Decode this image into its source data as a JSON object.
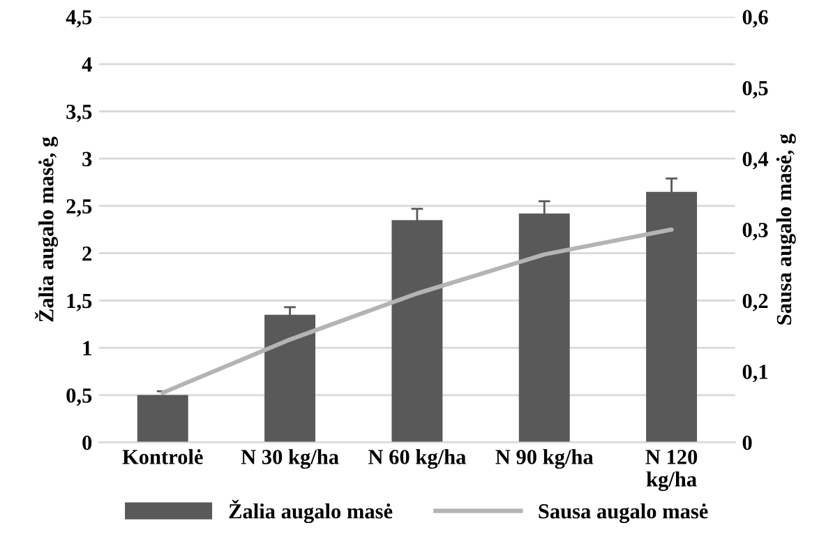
{
  "chart_data": {
    "type": "bar",
    "categories": [
      "Kontrolė",
      "N 30 kg/ha",
      "N 60 kg/ha",
      "N 90 kg/ha",
      "N 120\nkg/ha"
    ],
    "ylabel": "Žalia augalo masė, g",
    "y2label": "Sausa augalo masė, g",
    "series": [
      {
        "name": "Žalia augalo masė",
        "color": "#595959",
        "values": [
          0.5,
          1.35,
          2.35,
          2.42,
          2.65
        ],
        "errors": [
          0.04,
          0.08,
          0.12,
          0.13,
          0.14
        ]
      },
      {
        "name": "Sausa augalo masė",
        "type": "line",
        "axis": "y2",
        "color": "#b4b4b4",
        "values": [
          0.07,
          0.145,
          0.21,
          0.265,
          0.3
        ]
      }
    ],
    "ylim": [
      0,
      4.5
    ],
    "yticks": [
      {
        "value": 0,
        "label": "0"
      },
      {
        "value": 0.5,
        "label": "0,5"
      },
      {
        "value": 1,
        "label": "1"
      },
      {
        "value": 1.5,
        "label": "1,5"
      },
      {
        "value": 2,
        "label": "2"
      },
      {
        "value": 2.5,
        "label": "2,5"
      },
      {
        "value": 3,
        "label": "3"
      },
      {
        "value": 3.5,
        "label": "3,5"
      },
      {
        "value": 4,
        "label": "4"
      },
      {
        "value": 4.5,
        "label": "4,5"
      }
    ],
    "y2lim": [
      0,
      0.6
    ],
    "y2ticks": [
      {
        "value": 0,
        "label": "0"
      },
      {
        "value": 0.1,
        "label": "0,1"
      },
      {
        "value": 0.2,
        "label": "0,2"
      },
      {
        "value": 0.3,
        "label": "0,3"
      },
      {
        "value": 0.4,
        "label": "0,4"
      },
      {
        "value": 0.5,
        "label": "0,5"
      },
      {
        "value": 0.6,
        "label": "0,6"
      }
    ],
    "grid": "y",
    "legend": "bottom",
    "marker": "none",
    "line_style": "solid"
  }
}
